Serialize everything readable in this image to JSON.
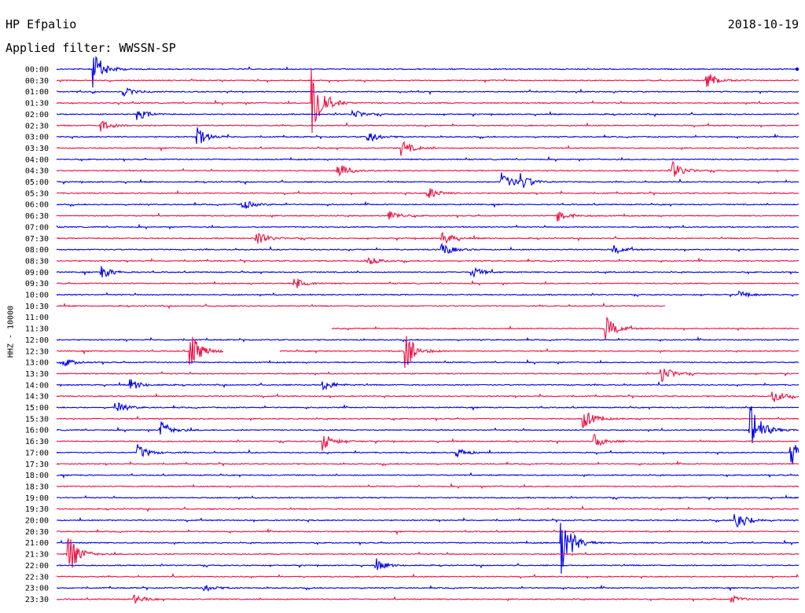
{
  "header": {
    "station": "HP Efpalio",
    "date": "2018-10-19",
    "filter": "Applied filter: WWSSN-SP"
  },
  "chart_data": {
    "type": "line",
    "ylabel": "HHZ - 10000",
    "colors": [
      "#0000ee",
      "#ee1144"
    ],
    "rows": [
      "00:00",
      "00:30",
      "01:00",
      "01:30",
      "02:00",
      "02:30",
      "03:00",
      "03:30",
      "04:00",
      "04:30",
      "05:00",
      "05:30",
      "06:00",
      "06:30",
      "07:00",
      "07:30",
      "08:00",
      "08:30",
      "09:00",
      "09:30",
      "10:00",
      "10:30",
      "11:00",
      "11:30",
      "12:00",
      "12:30",
      "13:00",
      "13:30",
      "14:00",
      "14:30",
      "15:00",
      "15:30",
      "16:00",
      "16:30",
      "17:00",
      "17:30",
      "18:00",
      "18:30",
      "19:00",
      "19:30",
      "20:00",
      "20:30",
      "21:00",
      "21:30",
      "22:00",
      "22:30",
      "23:00",
      "23:30"
    ],
    "events": [
      {
        "row": 0,
        "x": 0.05,
        "amp": 1.6
      },
      {
        "row": 1,
        "x": 0.876,
        "amp": 0.9
      },
      {
        "row": 2,
        "x": 0.09,
        "amp": 0.4
      },
      {
        "row": 3,
        "x": 0.345,
        "amp": 3.5
      },
      {
        "row": 4,
        "x": 0.11,
        "amp": 0.5
      },
      {
        "row": 4,
        "x": 0.4,
        "amp": 0.4
      },
      {
        "row": 5,
        "x": 0.06,
        "amp": 0.5
      },
      {
        "row": 6,
        "x": 0.19,
        "amp": 0.8
      },
      {
        "row": 6,
        "x": 0.42,
        "amp": 0.5
      },
      {
        "row": 7,
        "x": 0.465,
        "amp": 0.7
      },
      {
        "row": 9,
        "x": 0.38,
        "amp": 0.6
      },
      {
        "row": 9,
        "x": 0.83,
        "amp": 0.8
      },
      {
        "row": 10,
        "x": 0.6,
        "amp": 0.9
      },
      {
        "row": 10,
        "x": 0.625,
        "amp": 0.7
      },
      {
        "row": 11,
        "x": 0.5,
        "amp": 0.6
      },
      {
        "row": 12,
        "x": 0.25,
        "amp": 0.5
      },
      {
        "row": 13,
        "x": 0.448,
        "amp": 0.5
      },
      {
        "row": 13,
        "x": 0.675,
        "amp": 0.6
      },
      {
        "row": 15,
        "x": 0.27,
        "amp": 0.6
      },
      {
        "row": 15,
        "x": 0.52,
        "amp": 0.6
      },
      {
        "row": 16,
        "x": 0.52,
        "amp": 0.6
      },
      {
        "row": 16,
        "x": 0.75,
        "amp": 0.4
      },
      {
        "row": 17,
        "x": 0.42,
        "amp": 0.4
      },
      {
        "row": 18,
        "x": 0.06,
        "amp": 0.6
      },
      {
        "row": 18,
        "x": 0.56,
        "amp": 0.5
      },
      {
        "row": 19,
        "x": 0.32,
        "amp": 0.7
      },
      {
        "row": 20,
        "x": 0.92,
        "amp": 0.3
      },
      {
        "row": 23,
        "x": 0.74,
        "amp": 1.1
      },
      {
        "row": 25,
        "x": 0.18,
        "amp": 1.8
      },
      {
        "row": 25,
        "x": 0.47,
        "amp": 1.7
      },
      {
        "row": 26,
        "x": 0.01,
        "amp": 0.4
      },
      {
        "row": 27,
        "x": 0.815,
        "amp": 0.8
      },
      {
        "row": 28,
        "x": 0.1,
        "amp": 0.5
      },
      {
        "row": 28,
        "x": 0.36,
        "amp": 0.5
      },
      {
        "row": 29,
        "x": 0.965,
        "amp": 0.6
      },
      {
        "row": 30,
        "x": 0.08,
        "amp": 0.5
      },
      {
        "row": 31,
        "x": 0.71,
        "amp": 0.9
      },
      {
        "row": 32,
        "x": 0.14,
        "amp": 0.9
      },
      {
        "row": 32,
        "x": 0.935,
        "amp": 2.5
      },
      {
        "row": 33,
        "x": 0.36,
        "amp": 0.8
      },
      {
        "row": 33,
        "x": 0.725,
        "amp": 0.6
      },
      {
        "row": 34,
        "x": 0.11,
        "amp": 0.7
      },
      {
        "row": 34,
        "x": 0.54,
        "amp": 0.4
      },
      {
        "row": 34,
        "x": 0.99,
        "amp": 1.4
      },
      {
        "row": 40,
        "x": 0.915,
        "amp": 1.2
      },
      {
        "row": 42,
        "x": 0.68,
        "amp": 3.0
      },
      {
        "row": 43,
        "x": 0.015,
        "amp": 2.0
      },
      {
        "row": 44,
        "x": 0.43,
        "amp": 0.5
      },
      {
        "row": 46,
        "x": 0.2,
        "amp": 0.3
      },
      {
        "row": 47,
        "x": 0.105,
        "amp": 0.4
      },
      {
        "row": 47,
        "x": 0.91,
        "amp": 0.3
      }
    ],
    "gaps": [
      {
        "row": 21,
        "from": 0.82,
        "to": 1.0
      },
      {
        "row": 22,
        "from": 0.0,
        "to": 1.0
      },
      {
        "row": 23,
        "from": 0.0,
        "to": 0.37
      },
      {
        "row": 25,
        "from": 0.225,
        "to": 0.3
      }
    ]
  }
}
